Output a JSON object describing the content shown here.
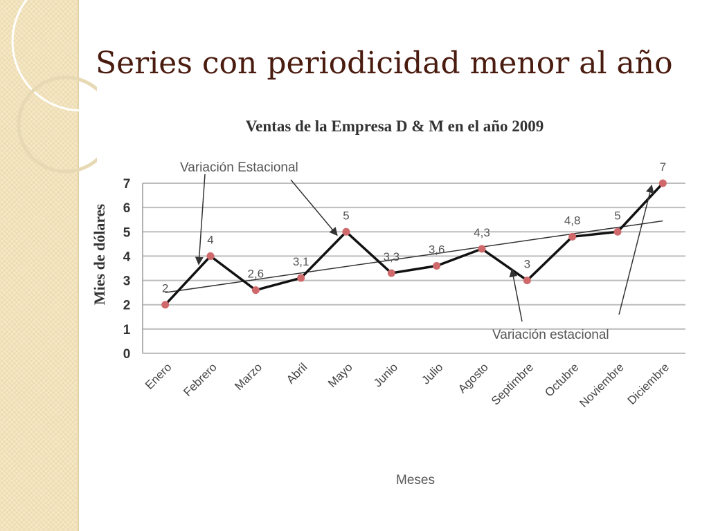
{
  "slide": {
    "title": "Series con periodicidad menor al año"
  },
  "colors": {
    "title": "#4a1b0f",
    "line": "#111111",
    "marker": "#d0696b",
    "trend": "#333333",
    "grid": "#bdbdbd",
    "band": "#f5e8c4"
  },
  "chart_data": {
    "type": "line",
    "title": "Ventas de la Empresa D & M en el año 2009",
    "xlabel": "Meses",
    "ylabel": "Mies de dólares",
    "ylim": [
      0,
      7
    ],
    "yticks": [
      "0",
      "1",
      "2",
      "3",
      "4",
      "5",
      "6",
      "7"
    ],
    "grid": true,
    "categories": [
      "Enero",
      "Febrero",
      "Marzo",
      "Abril",
      "Mayo",
      "Junio",
      "Julio",
      "Agosto",
      "Septimbre",
      "Octubre",
      "Noviembre",
      "Diciembre"
    ],
    "series": [
      {
        "values": [
          2,
          4,
          2.6,
          3.1,
          5,
          3.3,
          3.6,
          4.3,
          3,
          4.8,
          5,
          7
        ],
        "labels": [
          "2",
          "4",
          "2,6",
          "3,1",
          "5",
          "3,3",
          "3,6",
          "4,3",
          "3",
          "4,8",
          "5",
          "7"
        ]
      }
    ],
    "trendline": {
      "start": 2.5,
      "end": 5.45
    },
    "annotations": [
      {
        "text": "Variación Estacional",
        "targets": [
          1,
          4
        ]
      },
      {
        "text": "Variación estacional",
        "targets": [
          8,
          11
        ]
      }
    ]
  }
}
